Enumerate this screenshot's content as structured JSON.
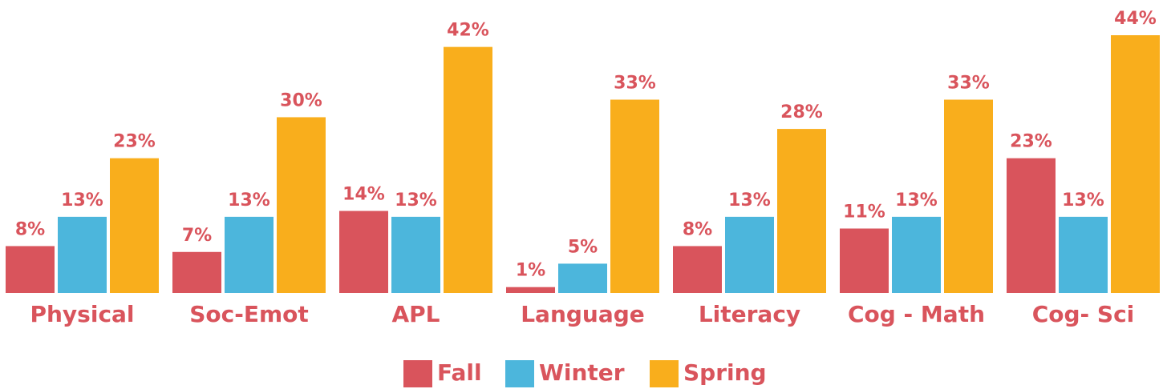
{
  "chart_data": {
    "type": "bar",
    "categories": [
      "Physical",
      "Soc-Emot",
      "APL",
      "Language",
      "Literacy",
      "Cog - Math",
      "Cog- Sci"
    ],
    "series": [
      {
        "name": "Fall",
        "color": "#d9545c",
        "values": [
          8,
          7,
          14,
          1,
          8,
          11,
          23
        ],
        "value_labels": [
          "8%",
          "7%",
          "14%",
          "1%",
          "8%",
          "11%",
          "23%"
        ]
      },
      {
        "name": "Winter",
        "color": "#4cb6dc",
        "values": [
          13,
          13,
          13,
          5,
          13,
          13,
          13
        ],
        "value_labels": [
          "13%",
          "13%",
          "13%",
          "5%",
          "13%",
          "13%",
          "13%"
        ]
      },
      {
        "name": "Spring",
        "color": "#f9ae1c",
        "values": [
          23,
          30,
          42,
          33,
          28,
          33,
          44
        ],
        "value_labels": [
          "23%",
          "30%",
          "42%",
          "33%",
          "28%",
          "33%",
          "44%"
        ]
      }
    ],
    "legend": "bottom"
  }
}
